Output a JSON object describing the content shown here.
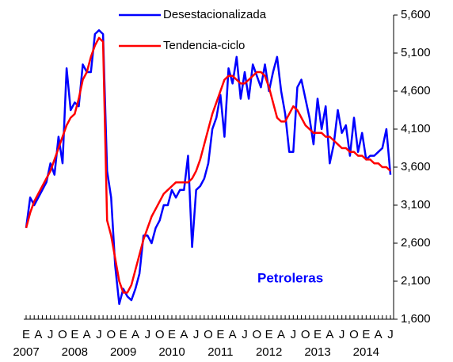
{
  "chart_data": {
    "type": "line",
    "annotation": "Petroleras",
    "categories": [
      "E",
      null,
      null,
      "A",
      null,
      null,
      "J",
      null,
      null,
      "O",
      null,
      null,
      "E",
      null,
      null,
      "A",
      null,
      null,
      "J",
      null,
      null,
      "O",
      null,
      null,
      "E",
      null,
      null,
      "A",
      null,
      null,
      "J",
      null,
      null,
      "O",
      null,
      null,
      "E",
      null,
      null,
      "A",
      null,
      null,
      "J",
      null,
      null,
      "O",
      null,
      null,
      "E",
      null,
      null,
      "A",
      null,
      null,
      "J",
      null,
      null,
      "O",
      null,
      null,
      "E",
      null,
      null,
      "A",
      null,
      null,
      "J",
      null,
      null,
      "O",
      null,
      null,
      "E",
      null,
      null,
      "A",
      null,
      null,
      "J",
      null,
      null,
      "O",
      null,
      null,
      "E",
      null,
      null,
      "A",
      null,
      null,
      "J"
    ],
    "years": [
      "2007",
      "2008",
      "2009",
      "2010",
      "2011",
      "2012",
      "2013",
      "2014"
    ],
    "series": [
      {
        "name": "Desestacionalizada",
        "color": "#0000ff",
        "values": [
          2800,
          3200,
          3100,
          3200,
          3300,
          3400,
          3650,
          3500,
          4000,
          3650,
          4900,
          4350,
          4450,
          4400,
          4950,
          4850,
          4850,
          5350,
          5400,
          5350,
          3550,
          3200,
          2300,
          1800,
          2000,
          1900,
          1850,
          2000,
          2200,
          2700,
          2700,
          2600,
          2800,
          2900,
          3100,
          3100,
          3300,
          3200,
          3300,
          3300,
          3750,
          2550,
          3300,
          3350,
          3450,
          3650,
          4100,
          4250,
          4550,
          4000,
          4900,
          4700,
          5050,
          4500,
          4850,
          4500,
          4950,
          4800,
          4650,
          4950,
          4600,
          4850,
          5050,
          4600,
          4300,
          3800,
          3800,
          4650,
          4750,
          4500,
          4250,
          3900,
          4500,
          4100,
          4400,
          3650,
          3900,
          4350,
          4050,
          4150,
          3750,
          4250,
          3800,
          4050,
          3700,
          3750,
          3750,
          3800,
          3850,
          4100,
          3500
        ]
      },
      {
        "name": "Tendencia-ciclo",
        "color": "#ff0000",
        "values": [
          2800,
          3000,
          3150,
          3250,
          3350,
          3450,
          3550,
          3700,
          3850,
          4000,
          4150,
          4250,
          4300,
          4500,
          4750,
          4850,
          5050,
          5200,
          5300,
          5250,
          2900,
          2700,
          2400,
          2100,
          1950,
          1950,
          2050,
          2250,
          2450,
          2650,
          2800,
          2950,
          3050,
          3150,
          3250,
          3300,
          3350,
          3400,
          3400,
          3400,
          3400,
          3450,
          3550,
          3700,
          3900,
          4100,
          4300,
          4450,
          4600,
          4750,
          4800,
          4800,
          4750,
          4700,
          4700,
          4750,
          4800,
          4850,
          4850,
          4800,
          4650,
          4450,
          4250,
          4200,
          4200,
          4300,
          4400,
          4350,
          4250,
          4150,
          4100,
          4050,
          4050,
          4050,
          4000,
          4000,
          3950,
          3900,
          3850,
          3850,
          3800,
          3800,
          3750,
          3750,
          3700,
          3700,
          3650,
          3650,
          3600,
          3600,
          3550
        ]
      }
    ],
    "ylim": [
      1600,
      5600
    ],
    "yticks": [
      {
        "value": 1600,
        "label": "1,600"
      },
      {
        "value": 2100,
        "label": "2,100"
      },
      {
        "value": 2600,
        "label": "2,600"
      },
      {
        "value": 3100,
        "label": "3,100"
      },
      {
        "value": 3600,
        "label": "3,600"
      },
      {
        "value": 4100,
        "label": "4,100"
      },
      {
        "value": 4600,
        "label": "4,600"
      },
      {
        "value": 5100,
        "label": "5,100"
      },
      {
        "value": 5600,
        "label": "5,600"
      }
    ],
    "y_axis_side": "right",
    "grid": false
  }
}
